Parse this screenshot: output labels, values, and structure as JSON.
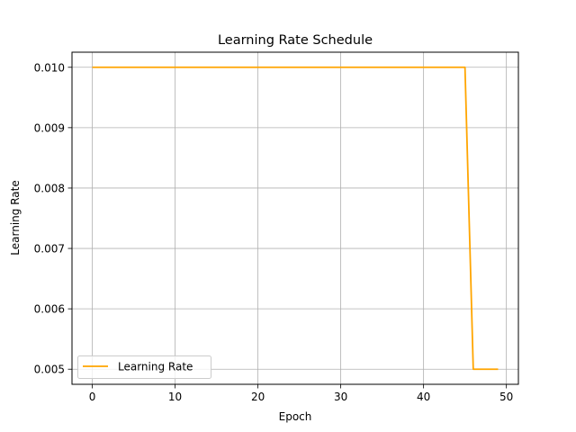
{
  "chart_data": {
    "type": "line",
    "title": "Learning Rate Schedule",
    "xlabel": "Epoch",
    "ylabel": "Learning Rate",
    "xlim": [
      -2.45,
      51.45
    ],
    "ylim": [
      0.00475,
      0.01025
    ],
    "xticks": [
      0,
      10,
      20,
      30,
      40,
      50
    ],
    "xtick_labels": [
      "0",
      "10",
      "20",
      "30",
      "40",
      "50"
    ],
    "yticks": [
      0.005,
      0.006,
      0.007,
      0.008,
      0.009,
      0.01
    ],
    "ytick_labels": [
      "0.005",
      "0.006",
      "0.007",
      "0.008",
      "0.009",
      "0.010"
    ],
    "grid": true,
    "legend_position": "lower-left",
    "series": [
      {
        "name": "Learning Rate",
        "color": "#ffa500",
        "x": [
          0,
          1,
          2,
          3,
          4,
          5,
          6,
          7,
          8,
          9,
          10,
          11,
          12,
          13,
          14,
          15,
          16,
          17,
          18,
          19,
          20,
          21,
          22,
          23,
          24,
          25,
          26,
          27,
          28,
          29,
          30,
          31,
          32,
          33,
          34,
          35,
          36,
          37,
          38,
          39,
          40,
          41,
          42,
          43,
          44,
          45,
          46,
          47,
          48,
          49
        ],
        "y": [
          0.01,
          0.01,
          0.01,
          0.01,
          0.01,
          0.01,
          0.01,
          0.01,
          0.01,
          0.01,
          0.01,
          0.01,
          0.01,
          0.01,
          0.01,
          0.01,
          0.01,
          0.01,
          0.01,
          0.01,
          0.01,
          0.01,
          0.01,
          0.01,
          0.01,
          0.01,
          0.01,
          0.01,
          0.01,
          0.01,
          0.01,
          0.01,
          0.01,
          0.01,
          0.01,
          0.01,
          0.01,
          0.01,
          0.01,
          0.01,
          0.01,
          0.01,
          0.01,
          0.01,
          0.01,
          0.01,
          0.005,
          0.005,
          0.005,
          0.005
        ]
      }
    ]
  }
}
